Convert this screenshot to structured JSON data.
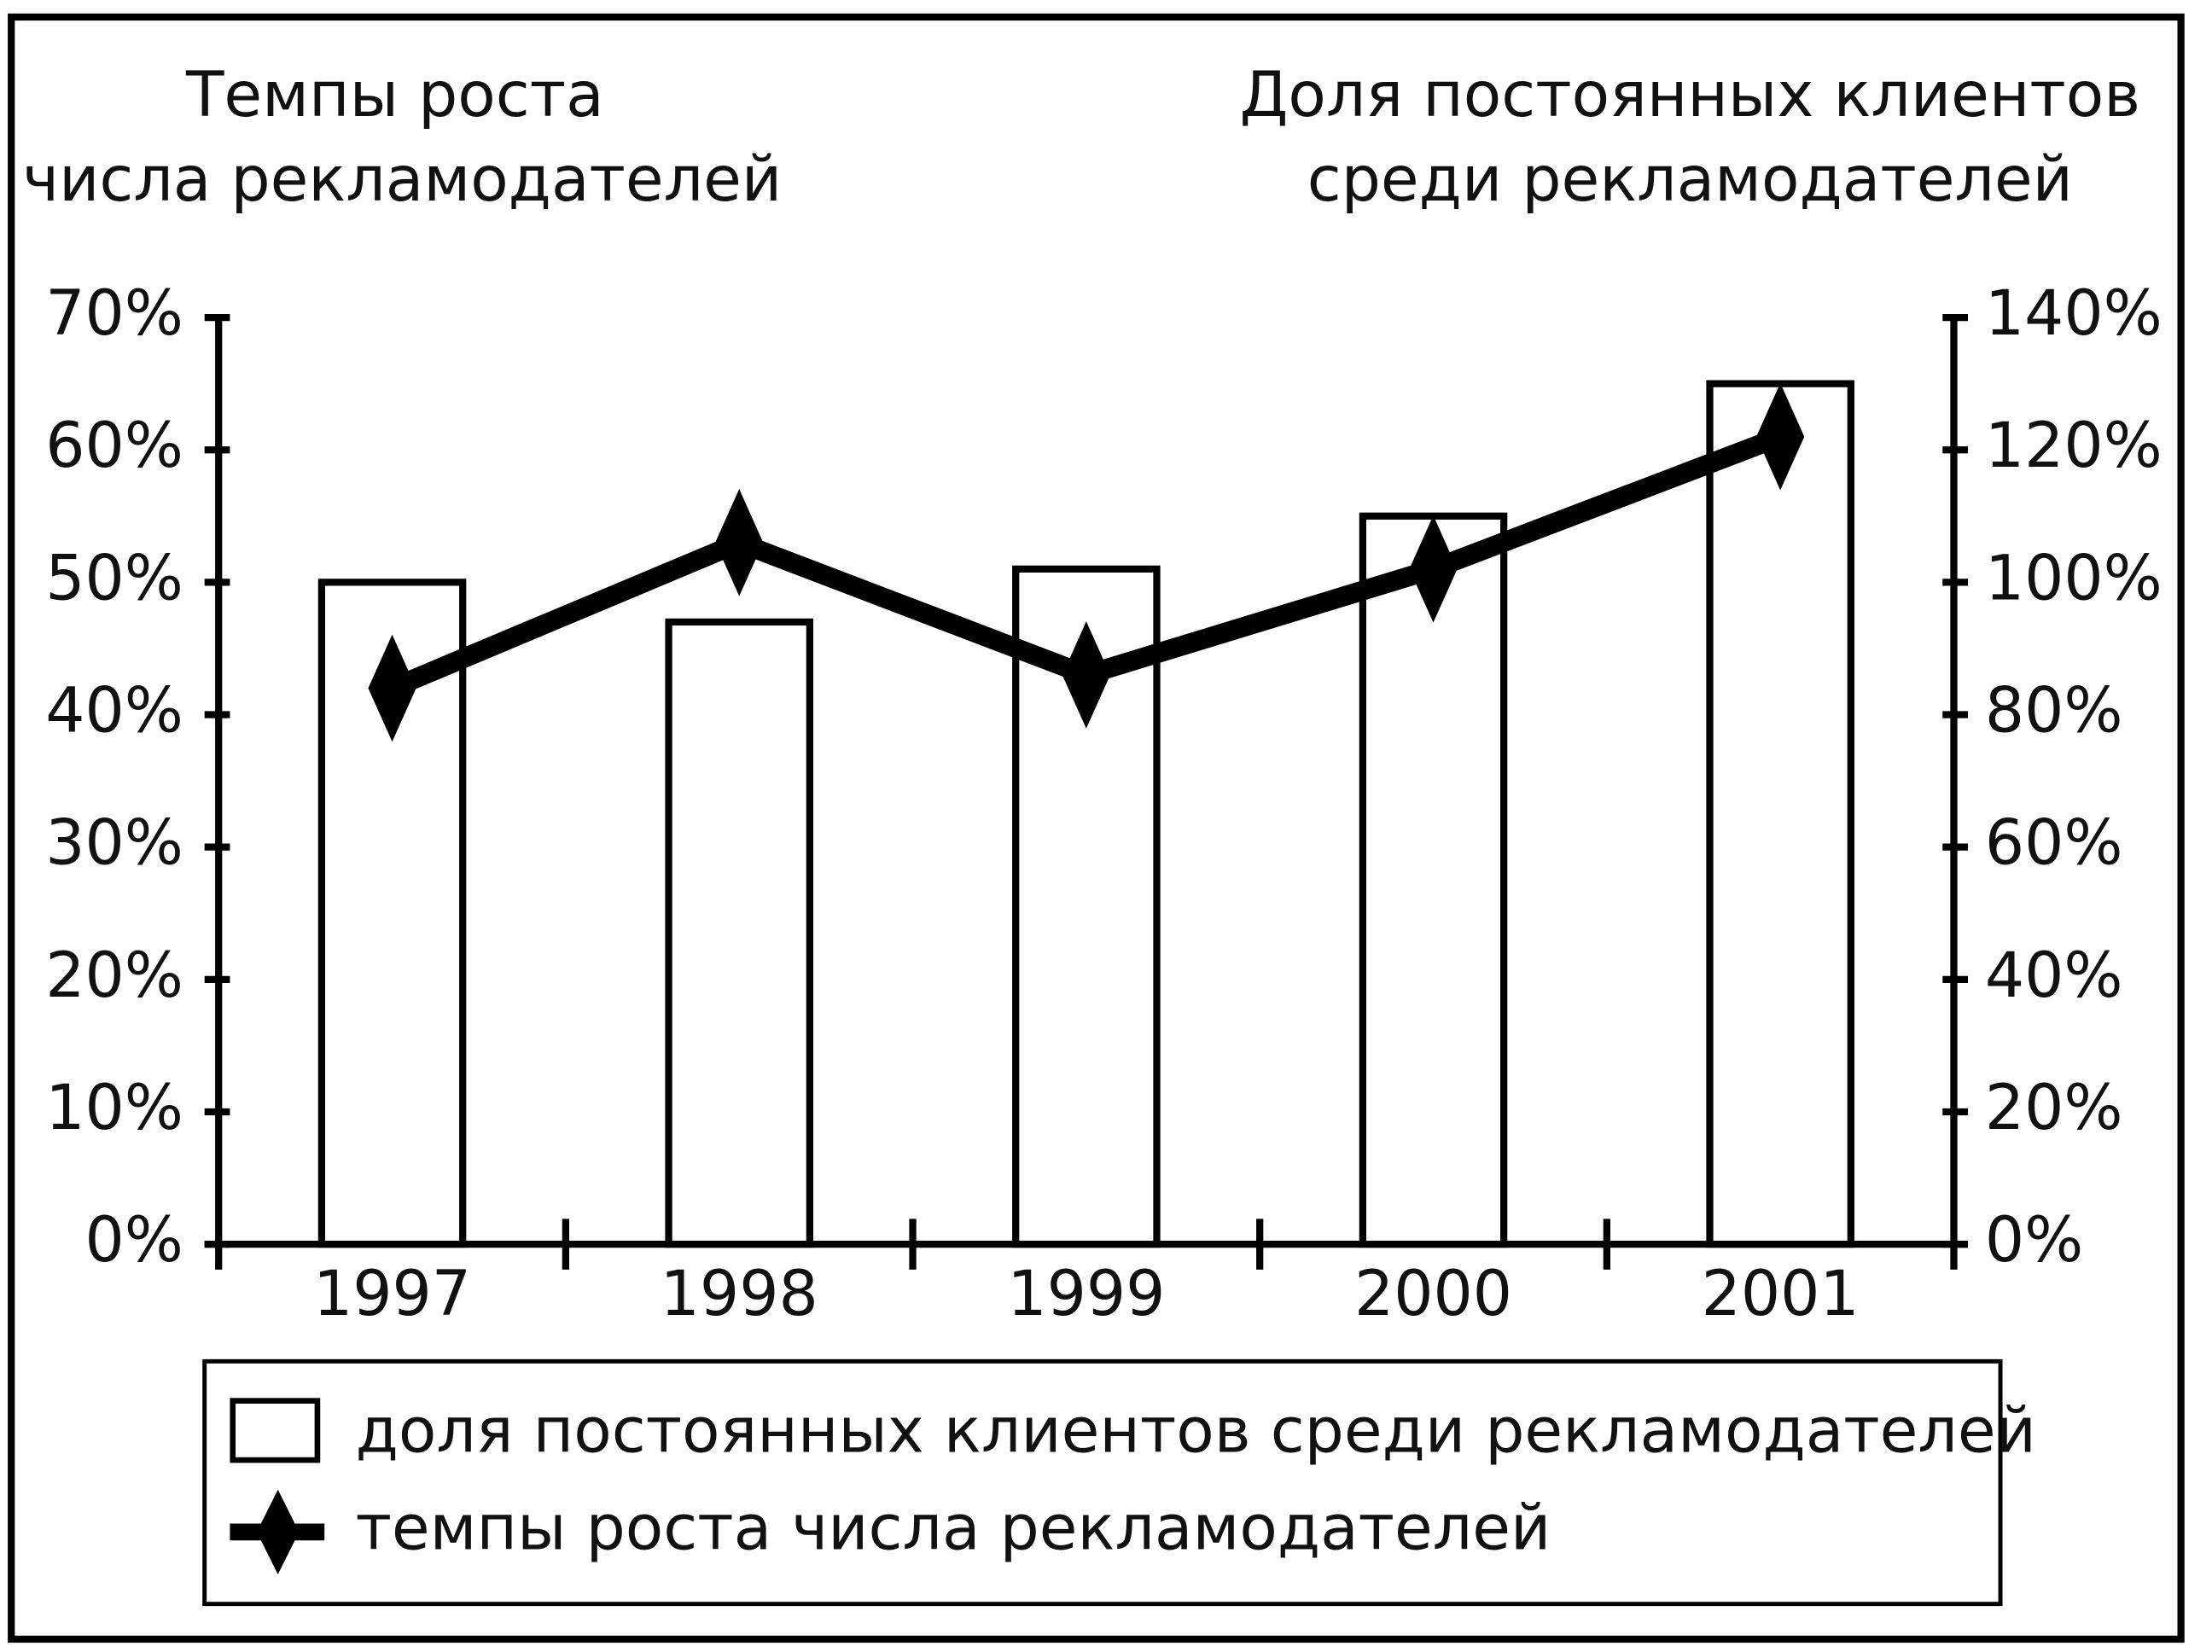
{
  "chart_data": {
    "type": "bar-line",
    "ylabel": [
      "Темпы роста",
      "числа рекламодателей"
    ],
    "y2label": [
      "Доля постоянных клиентов",
      "среди рекламодателей"
    ],
    "categories": [
      "1997",
      "1998",
      "1999",
      "2000",
      "2001"
    ],
    "ylim": [
      0,
      70
    ],
    "yticks": [
      {
        "value": 0,
        "label": "0%"
      },
      {
        "value": 10,
        "label": "10%"
      },
      {
        "value": 20,
        "label": "20%"
      },
      {
        "value": 30,
        "label": "30%"
      },
      {
        "value": 40,
        "label": "40%"
      },
      {
        "value": 50,
        "label": "50%"
      },
      {
        "value": 60,
        "label": "60%"
      },
      {
        "value": 70,
        "label": "70%"
      }
    ],
    "y2lim": [
      0,
      140
    ],
    "y2ticks": [
      {
        "value": 0,
        "label": "0%"
      },
      {
        "value": 20,
        "label": "20%"
      },
      {
        "value": 40,
        "label": "40%"
      },
      {
        "value": 60,
        "label": "60%"
      },
      {
        "value": 80,
        "label": "80%"
      },
      {
        "value": 100,
        "label": "100%"
      },
      {
        "value": 120,
        "label": "120%"
      },
      {
        "value": 140,
        "label": "140%"
      }
    ],
    "series": [
      {
        "name": "доля постоянных клиентов среди рекламодателей",
        "type": "bar",
        "axis": "y2",
        "color": "#ffffff",
        "values": [
          100,
          94,
          102,
          110,
          130
        ]
      },
      {
        "name": "темпы роста числа рекламодателей",
        "type": "line",
        "axis": "y",
        "color": "#000000",
        "values": [
          42,
          53,
          43,
          51,
          61
        ]
      }
    ]
  }
}
